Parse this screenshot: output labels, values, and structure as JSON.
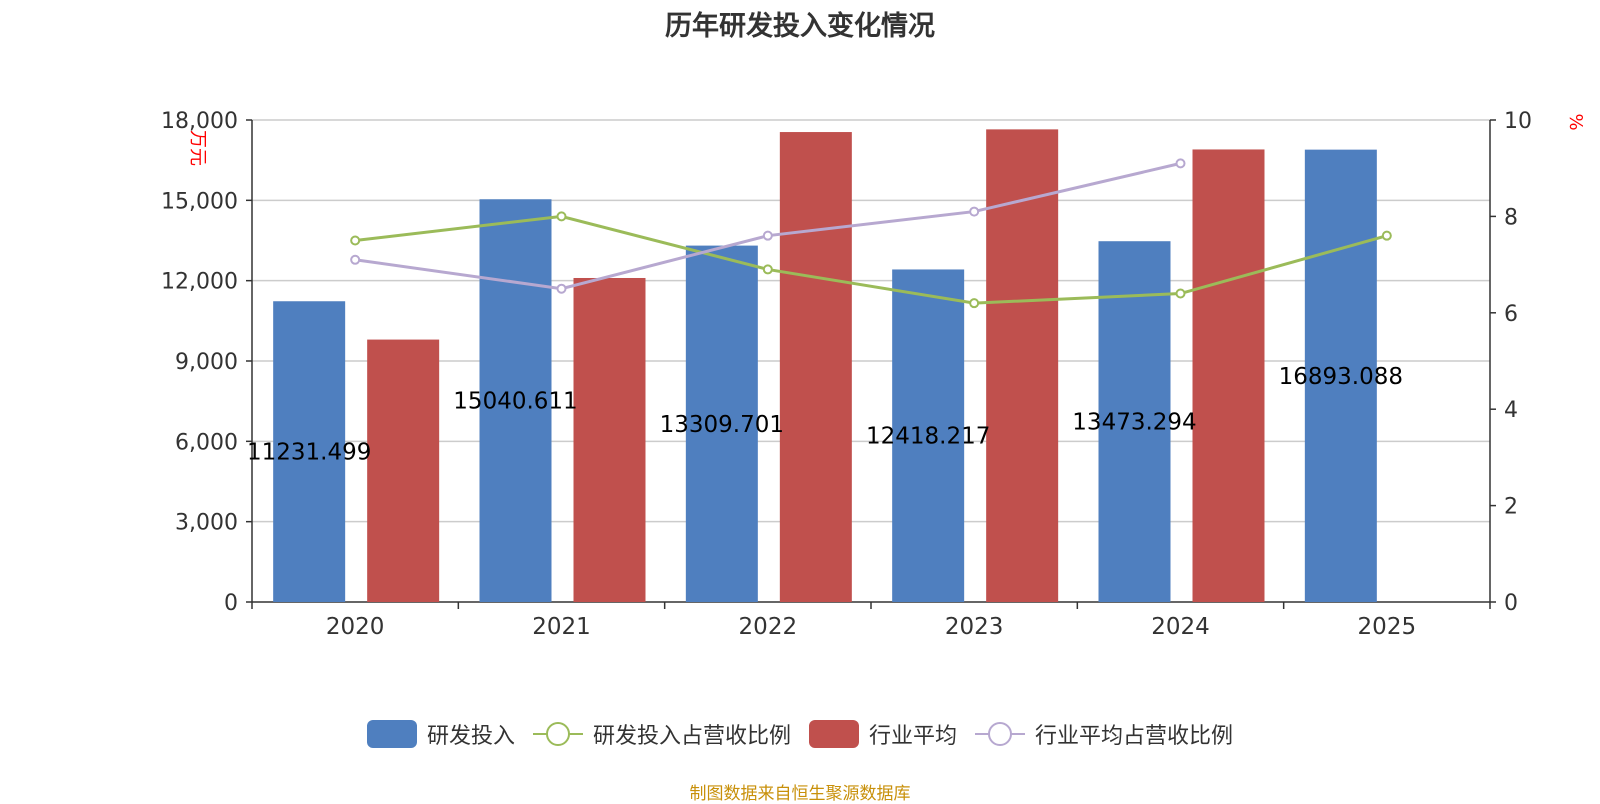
{
  "title": "历年研发投入变化情况",
  "source": "制图数据来自恒生聚源数据库",
  "colors": {
    "rd": "#4f7fbf",
    "rd_ratio": "#9bbb59",
    "industry": "#c0504d",
    "industry_ratio": "#b7a8d0",
    "axis_unit": "#ff0000",
    "grid": "#cccccc",
    "text": "#333333",
    "source": "#c8900a"
  },
  "legend": [
    {
      "label": "研发投入",
      "type": "bar",
      "color_key": "rd"
    },
    {
      "label": "研发投入占营收比例",
      "type": "line",
      "color_key": "rd_ratio"
    },
    {
      "label": "行业平均",
      "type": "bar",
      "color_key": "industry"
    },
    {
      "label": "行业平均占营收比例",
      "type": "line",
      "color_key": "industry_ratio"
    }
  ],
  "chart_data": {
    "type": "bar",
    "categories": [
      "2020",
      "2021",
      "2022",
      "2023",
      "2024",
      "2025"
    ],
    "y_left": {
      "unit": "万元",
      "min": 0,
      "max": 18000,
      "ticks": [
        0,
        3000,
        6000,
        9000,
        12000,
        15000,
        18000
      ],
      "tick_labels": [
        "0",
        "3,000",
        "6,000",
        "9,000",
        "12,000",
        "15,000",
        "18,000"
      ]
    },
    "y_right": {
      "unit": "%",
      "min": 0,
      "max": 10,
      "ticks": [
        0,
        2,
        4,
        6,
        8,
        10
      ],
      "tick_labels": [
        "0",
        "2",
        "4",
        "6",
        "8",
        "10"
      ]
    },
    "grid": true,
    "legend_position": "bottom",
    "series": [
      {
        "name": "研发投入",
        "type": "bar",
        "axis": "left",
        "values": [
          11231.499,
          15040.611,
          13309.701,
          12418.217,
          13473.294,
          16893.088
        ],
        "labels": [
          "11231.499",
          "15040.611",
          "13309.701",
          "12418.217",
          "13473.294",
          "16893.088"
        ]
      },
      {
        "name": "行业平均",
        "type": "bar",
        "axis": "left",
        "values": [
          9800,
          12100,
          17550,
          17650,
          16900,
          null
        ]
      },
      {
        "name": "研发投入占营收比例",
        "type": "line",
        "axis": "right",
        "values": [
          7.5,
          8.0,
          6.9,
          6.2,
          6.4,
          7.6
        ]
      },
      {
        "name": "行业平均占营收比例",
        "type": "line",
        "axis": "right",
        "values": [
          7.1,
          6.5,
          7.6,
          8.1,
          9.1,
          null
        ]
      }
    ]
  }
}
